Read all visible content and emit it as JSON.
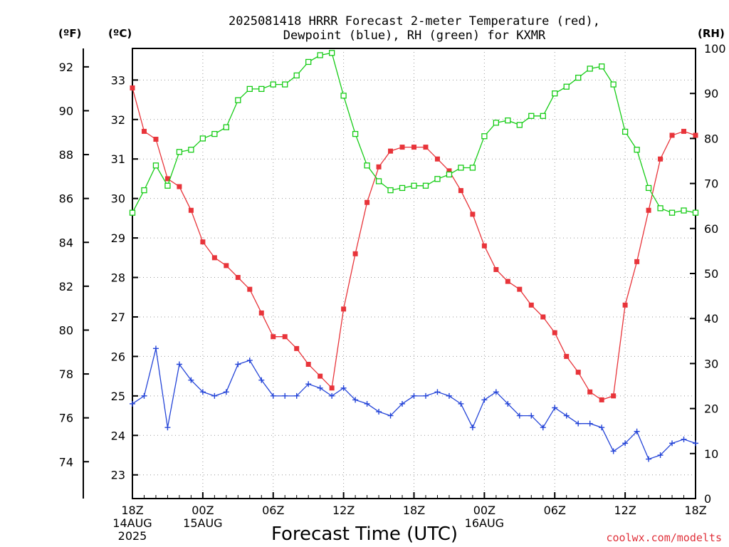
{
  "title_line1": "2025081418 HRRR Forecast 2-meter Temperature (red),",
  "title_line2": "Dewpoint (blue), RH (green) for KXMR",
  "unit_f": "(ºF)",
  "unit_c": "(ºC)",
  "unit_rh": "(RH)",
  "xlabel": "Forecast Time (UTC)",
  "credit": "coolwx.com/modelts",
  "colors": {
    "temp": "#e8343a",
    "dew": "#2545d8",
    "rh": "#16cc16",
    "grid": "#999999"
  },
  "chart_data": {
    "type": "line",
    "title": "2025081418 HRRR Forecast 2-meter Temperature (red), Dewpoint (blue), RH (green) for KXMR",
    "xlabel": "Forecast Time (UTC)",
    "x_unit": "hours from 18Z 14AUG 2025",
    "xlim": [
      0,
      48
    ],
    "x_ticks": [
      {
        "x": 0,
        "lines": [
          "18Z",
          "14AUG",
          "2025"
        ]
      },
      {
        "x": 6,
        "lines": [
          "00Z",
          "15AUG"
        ]
      },
      {
        "x": 12,
        "lines": [
          "06Z"
        ]
      },
      {
        "x": 18,
        "lines": [
          "12Z"
        ]
      },
      {
        "x": 24,
        "lines": [
          "18Z"
        ]
      },
      {
        "x": 30,
        "lines": [
          "00Z",
          "16AUG"
        ]
      },
      {
        "x": 36,
        "lines": [
          "06Z"
        ]
      },
      {
        "x": 42,
        "lines": [
          "12Z"
        ]
      },
      {
        "x": 48,
        "lines": [
          "18Z"
        ]
      }
    ],
    "y_left_c": {
      "label": "(ºC)",
      "lim": [
        22.4,
        33.8
      ],
      "ticks": [
        23,
        24,
        25,
        26,
        27,
        28,
        29,
        30,
        31,
        32,
        33
      ]
    },
    "y_left_f": {
      "label": "(ºF)",
      "ticks": [
        74,
        76,
        78,
        80,
        82,
        84,
        86,
        88,
        90,
        92
      ]
    },
    "y_right_rh": {
      "label": "(RH)",
      "lim": [
        0,
        100
      ],
      "ticks": [
        0,
        10,
        20,
        30,
        40,
        50,
        60,
        70,
        80,
        90,
        100
      ]
    },
    "grid": true,
    "series": [
      {
        "name": "Temperature",
        "axis": "c",
        "marker": "filled-square",
        "values": [
          32.8,
          31.7,
          31.5,
          30.5,
          30.3,
          29.7,
          28.9,
          28.5,
          28.3,
          28.0,
          27.7,
          27.1,
          26.5,
          26.5,
          26.2,
          25.8,
          25.5,
          25.2,
          27.2,
          28.6,
          29.9,
          30.8,
          31.2,
          31.3,
          31.3,
          31.3,
          31.0,
          30.7,
          30.2,
          29.6,
          28.8,
          28.2,
          27.9,
          27.7,
          27.3,
          27.0,
          26.6,
          26.0,
          25.6,
          25.1,
          24.9,
          25.0,
          27.3,
          28.4,
          29.7,
          31.0,
          31.6,
          31.7,
          31.6
        ]
      },
      {
        "name": "Dewpoint",
        "axis": "c",
        "marker": "plus",
        "values": [
          24.8,
          25.0,
          26.2,
          24.2,
          25.8,
          25.4,
          25.1,
          25.0,
          25.1,
          25.8,
          25.9,
          25.4,
          25.0,
          25.0,
          25.0,
          25.3,
          25.2,
          25.0,
          25.2,
          24.9,
          24.8,
          24.6,
          24.5,
          24.8,
          25.0,
          25.0,
          25.1,
          25.0,
          24.8,
          24.2,
          24.9,
          25.1,
          24.8,
          24.5,
          24.5,
          24.2,
          24.7,
          24.5,
          24.3,
          24.3,
          24.2,
          23.6,
          23.8,
          24.1,
          23.4,
          23.5,
          23.8,
          23.9,
          23.8
        ]
      },
      {
        "name": "RH",
        "axis": "rh",
        "marker": "open-square",
        "values": [
          63.5,
          68.5,
          74,
          69.5,
          77,
          77.5,
          80,
          81,
          82.5,
          88.5,
          91,
          91,
          92,
          92,
          94,
          97,
          98.5,
          99,
          89.5,
          81,
          74,
          70.5,
          68.5,
          69,
          69.5,
          69.5,
          71,
          72,
          73.5,
          73.5,
          80.5,
          83.5,
          84,
          83,
          85,
          85,
          90,
          91.5,
          93.5,
          95.5,
          96,
          92,
          81.5,
          77.5,
          69,
          64.5,
          63.5,
          64,
          63.5
        ]
      }
    ]
  }
}
